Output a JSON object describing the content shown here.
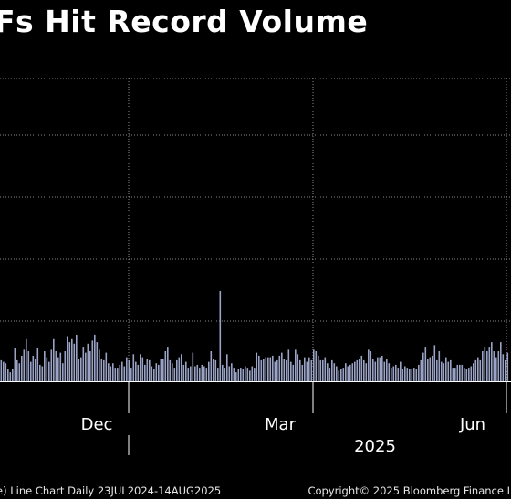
{
  "title": "Fs Hit Record Volume",
  "footer": {
    "left": "e) Line Chart  Daily 23JUL2024-14AUG2025",
    "right": "Copyright© 2025 Bloomberg Finance L"
  },
  "colors": {
    "background": "#000000",
    "bar": "#9aa3c6",
    "grid": "#8a8a8a",
    "axis": "#ffffff"
  },
  "chart_data": {
    "type": "bar",
    "x_tick_labels": [
      "Dec",
      "Mar",
      "Jun"
    ],
    "year_label": "2025",
    "grid": true,
    "y_gridlines": 5,
    "values": [
      14,
      13,
      12,
      8,
      6,
      8,
      22,
      14,
      12,
      17,
      21,
      26,
      20,
      13,
      17,
      15,
      22,
      11,
      10,
      20,
      16,
      13,
      21,
      28,
      20,
      16,
      19,
      12,
      20,
      30,
      26,
      28,
      25,
      19,
      15,
      16,
      23,
      19,
      12,
      20,
      27,
      31,
      26,
      21,
      15,
      14,
      19,
      12,
      10,
      12,
      9,
      9,
      11,
      13,
      10,
      16,
      14,
      9,
      18,
      13,
      11,
      18,
      16,
      11,
      15,
      14,
      10,
      8,
      12,
      11,
      15,
      15,
      20,
      23,
      14,
      12,
      9,
      14,
      16,
      18,
      11,
      13,
      9,
      10,
      19,
      10,
      11,
      9,
      11,
      10,
      9,
      13,
      20,
      15,
      14,
      9,
      13,
      11,
      9,
      16,
      10,
      12,
      9,
      6,
      8,
      9,
      8,
      10,
      9,
      7,
      10,
      9,
      19,
      17,
      14,
      15,
      16,
      16,
      16,
      17,
      13,
      14,
      17,
      19,
      15,
      14,
      21,
      13,
      11,
      10,
      18,
      14,
      11,
      16,
      13,
      16,
      14,
      21,
      20,
      17,
      14,
      14,
      16,
      12,
      9,
      14,
      12,
      10,
      7,
      8,
      9,
      12,
      10,
      11,
      12,
      13,
      14,
      15,
      17,
      14,
      12,
      21,
      20,
      15,
      13,
      16,
      16,
      17,
      13,
      15,
      12,
      9,
      10,
      11,
      9,
      13,
      8,
      10,
      9,
      8,
      8,
      9,
      8,
      11,
      14,
      19,
      23,
      15,
      16,
      17,
      24,
      14,
      20,
      13,
      12,
      16,
      13,
      14,
      9,
      9,
      11,
      11,
      11,
      9,
      8,
      9,
      10,
      12,
      14,
      16,
      14,
      20,
      23,
      20,
      23,
      26,
      20,
      16,
      20,
      26,
      18,
      14,
      19,
      11,
      14,
      12,
      14,
      9,
      10,
      13,
      9,
      11,
      12,
      13,
      12,
      10,
      9,
      14,
      9,
      10,
      7,
      9,
      9,
      10,
      9,
      16,
      14,
      11,
      9,
      10,
      15,
      12,
      16,
      13,
      9,
      13,
      10,
      8,
      12,
      9,
      11,
      15,
      9,
      10,
      8,
      6,
      9,
      12,
      13,
      16,
      19,
      22,
      18,
      16,
      14,
      20,
      17,
      15,
      19,
      24,
      20,
      17,
      13,
      16,
      11,
      11,
      9,
      8,
      6,
      9,
      11,
      14,
      13,
      9,
      6,
      9,
      7,
      12,
      8,
      10,
      13,
      9,
      8,
      7,
      6,
      7,
      6,
      10,
      9,
      8,
      9,
      11,
      9,
      14,
      18,
      14,
      12,
      17,
      21,
      26,
      22,
      17,
      12,
      16,
      21,
      20,
      25,
      22,
      18,
      16,
      10,
      11,
      9,
      9,
      12,
      15,
      14,
      17,
      19,
      24,
      20,
      17,
      14,
      13,
      18,
      16,
      11,
      14,
      12,
      9,
      10,
      14,
      17,
      18,
      16,
      13,
      16,
      14,
      15,
      10,
      7,
      9,
      12,
      16,
      12,
      18,
      20,
      23,
      25,
      18,
      13,
      18,
      21,
      24,
      22,
      15,
      17,
      20,
      18,
      12,
      9,
      11,
      14,
      18,
      21,
      22,
      26,
      18,
      15,
      19,
      17,
      21,
      20,
      13,
      14,
      20,
      22,
      18,
      17,
      18,
      16,
      12,
      13,
      8,
      10,
      16,
      19,
      21,
      23,
      15,
      15,
      12,
      14,
      10,
      12,
      7,
      9,
      13,
      14,
      16,
      19,
      14,
      11,
      9,
      11,
      15,
      18,
      22,
      18,
      17,
      16,
      21,
      24,
      20,
      18,
      22,
      18,
      21,
      25,
      16,
      18,
      14,
      20,
      19,
      15,
      21,
      16,
      24,
      19,
      12,
      14,
      17,
      16,
      19,
      21,
      17,
      20,
      24,
      26,
      15,
      16,
      13,
      18,
      17,
      19,
      21,
      24,
      20,
      17,
      14,
      21,
      24,
      27,
      25,
      20,
      15,
      18,
      12,
      9,
      11,
      14,
      16,
      19,
      22,
      26,
      21,
      18,
      12,
      16,
      14,
      18,
      26,
      22,
      17,
      14
    ],
    "spikes": {
      "11": 28,
      "29": 30,
      "96": 60,
      "99": 18,
      "33": 31,
      "38": 25,
      "129": 21
    }
  }
}
